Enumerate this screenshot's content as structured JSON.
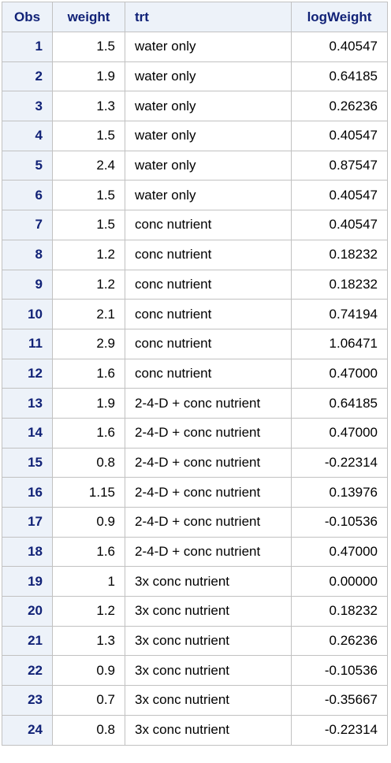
{
  "table": {
    "columns": [
      {
        "key": "obs",
        "label": "Obs"
      },
      {
        "key": "weight",
        "label": "weight"
      },
      {
        "key": "trt",
        "label": "trt"
      },
      {
        "key": "logWeight",
        "label": "logWeight"
      }
    ],
    "rows": [
      {
        "obs": "1",
        "weight": "1.5",
        "trt": "water only",
        "logWeight": "0.40547"
      },
      {
        "obs": "2",
        "weight": "1.9",
        "trt": "water only",
        "logWeight": "0.64185"
      },
      {
        "obs": "3",
        "weight": "1.3",
        "trt": "water only",
        "logWeight": "0.26236"
      },
      {
        "obs": "4",
        "weight": "1.5",
        "trt": "water only",
        "logWeight": "0.40547"
      },
      {
        "obs": "5",
        "weight": "2.4",
        "trt": "water only",
        "logWeight": "0.87547"
      },
      {
        "obs": "6",
        "weight": "1.5",
        "trt": "water only",
        "logWeight": "0.40547"
      },
      {
        "obs": "7",
        "weight": "1.5",
        "trt": "conc nutrient",
        "logWeight": "0.40547"
      },
      {
        "obs": "8",
        "weight": "1.2",
        "trt": "conc nutrient",
        "logWeight": "0.18232"
      },
      {
        "obs": "9",
        "weight": "1.2",
        "trt": "conc nutrient",
        "logWeight": "0.18232"
      },
      {
        "obs": "10",
        "weight": "2.1",
        "trt": "conc nutrient",
        "logWeight": "0.74194"
      },
      {
        "obs": "11",
        "weight": "2.9",
        "trt": "conc nutrient",
        "logWeight": "1.06471"
      },
      {
        "obs": "12",
        "weight": "1.6",
        "trt": "conc nutrient",
        "logWeight": "0.47000"
      },
      {
        "obs": "13",
        "weight": "1.9",
        "trt": "2-4-D + conc nutrient",
        "logWeight": "0.64185"
      },
      {
        "obs": "14",
        "weight": "1.6",
        "trt": "2-4-D + conc nutrient",
        "logWeight": "0.47000"
      },
      {
        "obs": "15",
        "weight": "0.8",
        "trt": "2-4-D + conc nutrient",
        "logWeight": "-0.22314"
      },
      {
        "obs": "16",
        "weight": "1.15",
        "trt": "2-4-D + conc nutrient",
        "logWeight": "0.13976"
      },
      {
        "obs": "17",
        "weight": "0.9",
        "trt": "2-4-D + conc nutrient",
        "logWeight": "-0.10536"
      },
      {
        "obs": "18",
        "weight": "1.6",
        "trt": "2-4-D + conc nutrient",
        "logWeight": "0.47000"
      },
      {
        "obs": "19",
        "weight": "1",
        "trt": "3x conc nutrient",
        "logWeight": "0.00000"
      },
      {
        "obs": "20",
        "weight": "1.2",
        "trt": "3x conc nutrient",
        "logWeight": "0.18232"
      },
      {
        "obs": "21",
        "weight": "1.3",
        "trt": "3x conc nutrient",
        "logWeight": "0.26236"
      },
      {
        "obs": "22",
        "weight": "0.9",
        "trt": "3x conc nutrient",
        "logWeight": "-0.10536"
      },
      {
        "obs": "23",
        "weight": "0.7",
        "trt": "3x conc nutrient",
        "logWeight": "-0.35667"
      },
      {
        "obs": "24",
        "weight": "0.8",
        "trt": "3x conc nutrient",
        "logWeight": "-0.22314"
      }
    ]
  }
}
